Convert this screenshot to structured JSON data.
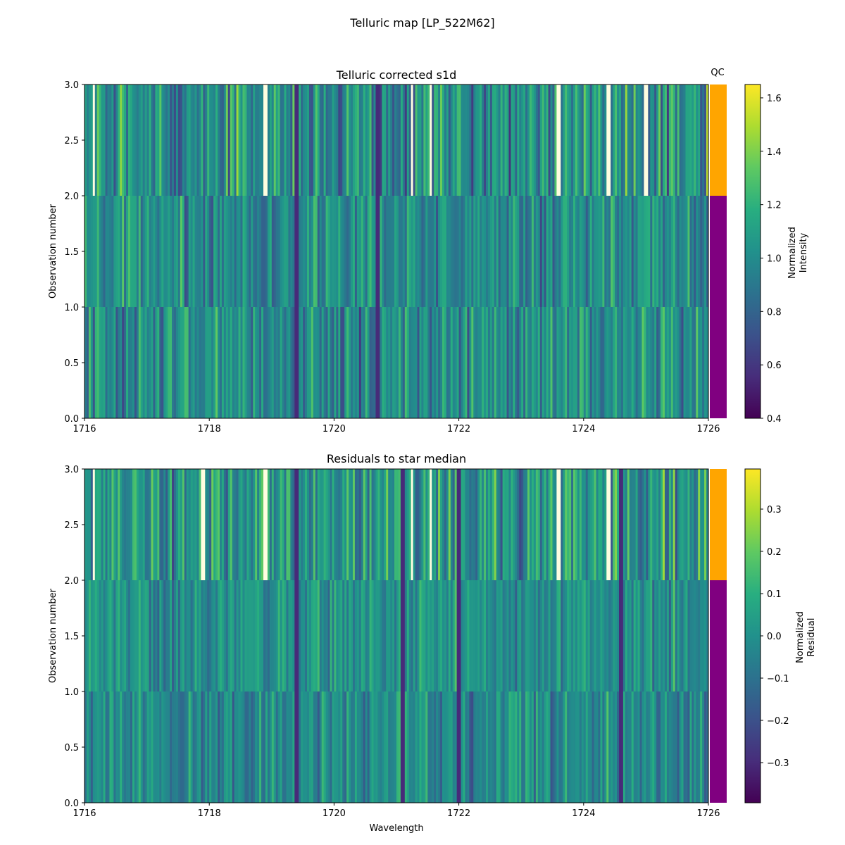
{
  "figure": {
    "title": "Telluric map [LP_522M62]"
  },
  "chart_data": [
    {
      "type": "heatmap",
      "title": "Telluric corrected s1d",
      "xlabel": "",
      "ylabel": "Observation number",
      "xlim": [
        1716,
        1726
      ],
      "ylim": [
        0,
        3
      ],
      "x_ticks": [
        "1716",
        "1718",
        "1720",
        "1722",
        "1724",
        "1726"
      ],
      "y_ticks": [
        "0.0",
        "0.5",
        "1.0",
        "1.5",
        "2.0",
        "2.5",
        "3.0"
      ],
      "rows": [
        {
          "observation": 0,
          "range": [
            0,
            1
          ],
          "base": 1.0,
          "spread": 0.22
        },
        {
          "observation": 1,
          "range": [
            1,
            2
          ],
          "base": 1.0,
          "spread": 0.2
        },
        {
          "observation": 2,
          "range": [
            2,
            3
          ],
          "base": 1.02,
          "spread": 0.28
        }
      ],
      "bright_lines": [
        1716.15,
        1718.9,
        1721.25,
        1721.55,
        1723.6,
        1724.4,
        1725.0
      ],
      "dark_lines": [
        1719.4,
        1720.7
      ],
      "colorbar": {
        "label_line1": "Normalized",
        "label_line2": "Intensity",
        "range": [
          0.4,
          1.65
        ],
        "ticks": [
          "0.4",
          "0.6",
          "0.8",
          "1.0",
          "1.2",
          "1.4",
          "1.6"
        ]
      },
      "qc": {
        "label": "QC",
        "segments": [
          {
            "range": [
              0,
              2
            ],
            "color": "#800080"
          },
          {
            "range": [
              2,
              3
            ],
            "color": "#ffa500"
          }
        ]
      }
    },
    {
      "type": "heatmap",
      "title": "Residuals to star median",
      "xlabel": "Wavelength",
      "ylabel": "Observation number",
      "xlim": [
        1716,
        1726
      ],
      "ylim": [
        0,
        3
      ],
      "x_ticks": [
        "1716",
        "1718",
        "1720",
        "1722",
        "1724",
        "1726"
      ],
      "y_ticks": [
        "0.0",
        "0.5",
        "1.0",
        "1.5",
        "2.0",
        "2.5",
        "3.0"
      ],
      "rows": [
        {
          "observation": 0,
          "range": [
            0,
            1
          ],
          "base": -0.02,
          "spread": 0.12
        },
        {
          "observation": 1,
          "range": [
            1,
            2
          ],
          "base": 0.0,
          "spread": 0.1
        },
        {
          "observation": 2,
          "range": [
            2,
            3
          ],
          "base": 0.02,
          "spread": 0.16
        }
      ],
      "bright_lines": [
        1716.15,
        1717.9,
        1718.9,
        1721.25,
        1721.55,
        1723.6,
        1724.4
      ],
      "dark_lines": [
        1719.4,
        1721.1,
        1722.0,
        1724.6
      ],
      "colorbar": {
        "label_line1": "Normalized",
        "label_line2": "Residual",
        "range": [
          -0.395,
          0.395
        ],
        "ticks": [
          "−0.3",
          "−0.2",
          "−0.1",
          "0.0",
          "0.1",
          "0.2",
          "0.3"
        ]
      },
      "qc": {
        "label": "",
        "segments": [
          {
            "range": [
              0,
              2
            ],
            "color": "#800080"
          },
          {
            "range": [
              2,
              3
            ],
            "color": "#ffa500"
          }
        ]
      }
    }
  ]
}
